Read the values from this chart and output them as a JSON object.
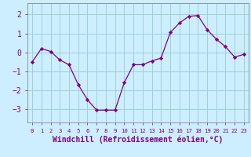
{
  "x": [
    0,
    1,
    2,
    3,
    4,
    5,
    6,
    7,
    8,
    9,
    10,
    11,
    12,
    13,
    14,
    15,
    16,
    17,
    18,
    19,
    20,
    21,
    22,
    23
  ],
  "y": [
    -0.5,
    0.2,
    0.05,
    -0.4,
    -0.65,
    -1.7,
    -2.5,
    -3.05,
    -3.05,
    -3.05,
    -1.6,
    -0.65,
    -0.65,
    -0.45,
    -0.3,
    1.05,
    1.55,
    1.9,
    1.95,
    1.2,
    0.7,
    0.3,
    -0.25,
    -0.1
  ],
  "line_color": "#800080",
  "marker_color": "#800080",
  "bg_color": "#cceeff",
  "grid_color": "#99cccc",
  "xlabel": "Windchill (Refroidissement éolien,°C)",
  "tick_color": "#800080",
  "ylabel_ticks": [
    -3,
    -2,
    -1,
    0,
    1,
    2
  ],
  "xlim": [
    -0.5,
    23.5
  ],
  "ylim": [
    -3.7,
    2.6
  ],
  "xtick_labels": [
    "0",
    "1",
    "2",
    "3",
    "4",
    "5",
    "6",
    "7",
    "8",
    "9",
    "10",
    "11",
    "12",
    "13",
    "14",
    "15",
    "16",
    "17",
    "18",
    "19",
    "20",
    "21",
    "22",
    "23"
  ]
}
